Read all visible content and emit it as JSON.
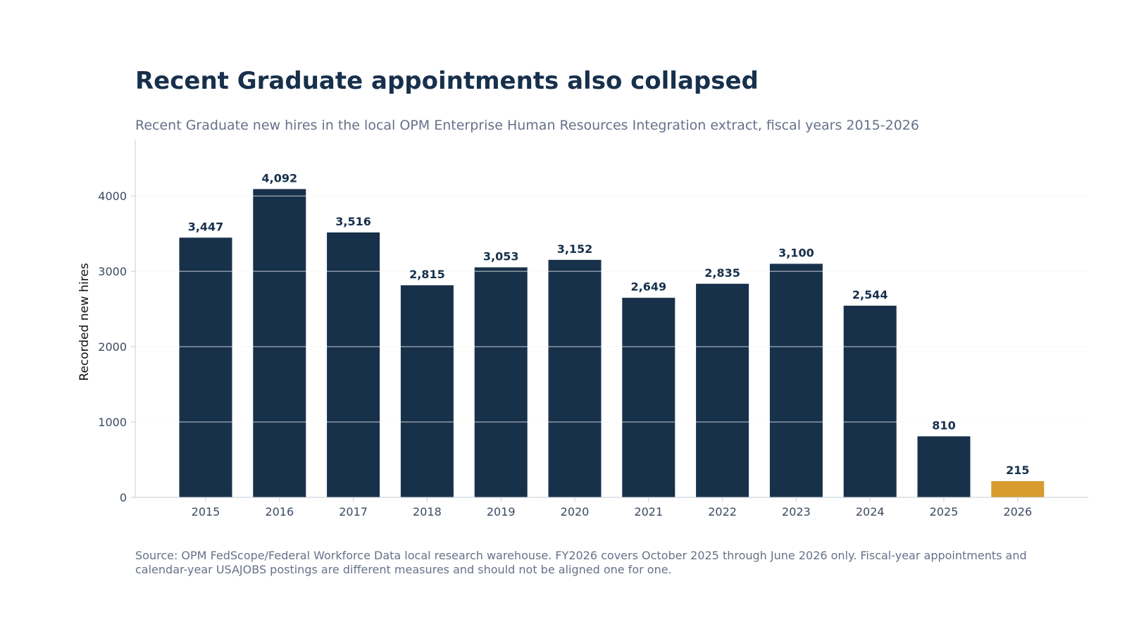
{
  "title": "Recent Graduate appointments also collapsed",
  "subtitle": "Recent Graduate new hires in the local OPM Enterprise Human Resources Integration extract, fiscal years 2015-2026",
  "source": "Source: OPM FedScope/Federal Workforce Data local research warehouse. FY2026 covers October 2025 through June 2026 only. Fiscal-year appointments and calendar-year USAJOBS postings are different measures and should not be aligned one for one.",
  "colors": {
    "bar": "#18314b",
    "highlight": "#d89b2e",
    "grid": "#e6eaf0",
    "axis": "#c5ccd6"
  },
  "chart_data": {
    "type": "bar",
    "title": "Recent Graduate appointments also collapsed",
    "subtitle": "Recent Graduate new hires in the local OPM Enterprise Human Resources Integration extract, fiscal years 2015-2026",
    "xlabel": "",
    "ylabel": "Recorded new hires",
    "categories": [
      "2015",
      "2016",
      "2017",
      "2018",
      "2019",
      "2020",
      "2021",
      "2022",
      "2023",
      "2024",
      "2025",
      "2026"
    ],
    "values": [
      3447,
      4092,
      3516,
      2815,
      3053,
      3152,
      2649,
      2835,
      3100,
      2544,
      810,
      215
    ],
    "value_labels": [
      "3,447",
      "4,092",
      "3,516",
      "2,815",
      "3,053",
      "3,152",
      "2,649",
      "2,835",
      "3,100",
      "2,544",
      "810",
      "215"
    ],
    "highlight_categories": [
      "2026"
    ],
    "ylim": [
      0,
      4750
    ],
    "yticks": [
      0,
      1000,
      2000,
      3000,
      4000
    ],
    "grid": true,
    "legend": "none"
  }
}
